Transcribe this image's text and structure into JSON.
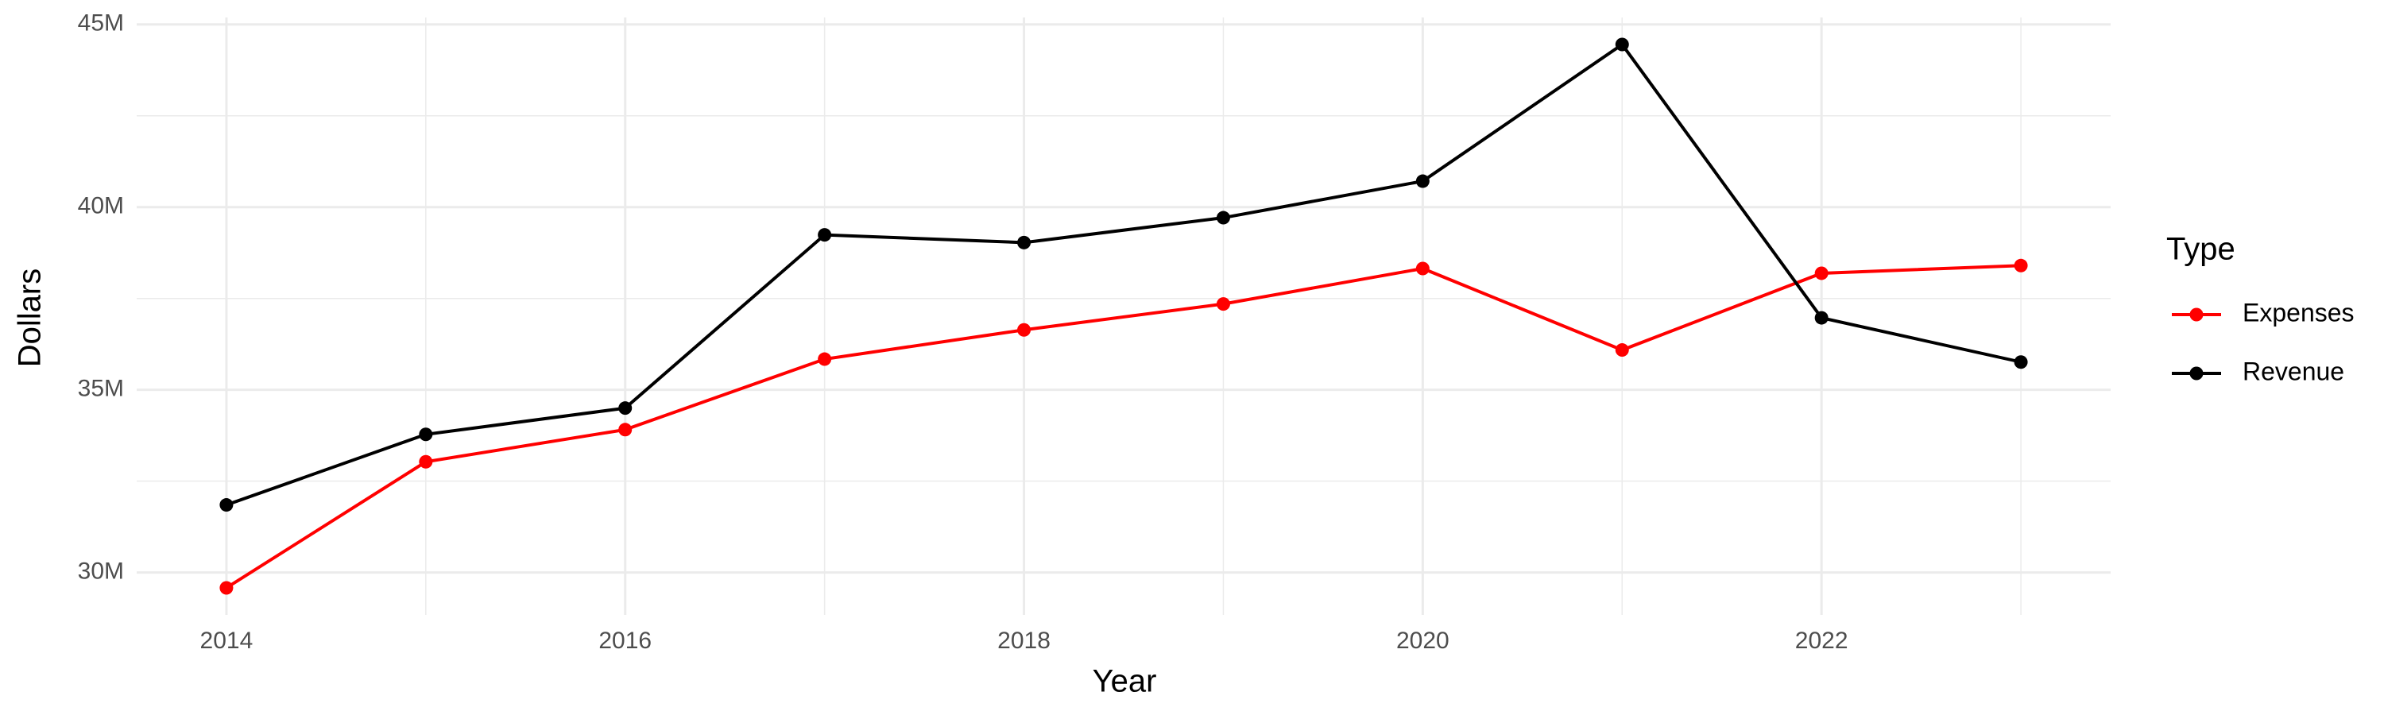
{
  "chart_data": {
    "type": "line",
    "x_label": "Year",
    "y_label": "Dollars",
    "x": [
      2014,
      2015,
      2016,
      2017,
      2018,
      2019,
      2020,
      2021,
      2022,
      2023
    ],
    "series": [
      {
        "name": "Expenses",
        "color": "#ff0000",
        "values": [
          29580000,
          33030000,
          33910000,
          35840000,
          36640000,
          37350000,
          38320000,
          36090000,
          38190000,
          38400000
        ]
      },
      {
        "name": "Revenue",
        "color": "#000000",
        "values": [
          31850000,
          33780000,
          34500000,
          39240000,
          39030000,
          39710000,
          40710000,
          44450000,
          36970000,
          35760000
        ]
      }
    ],
    "legend_title": "Type",
    "legend_position": "right",
    "xlim": [
      2013.55,
      2023.45
    ],
    "xticks": [
      2014,
      2016,
      2018,
      2020,
      2022
    ],
    "xminorticks": [
      2015,
      2017,
      2019,
      2021,
      2023
    ],
    "ylim": [
      28840000,
      45190000
    ],
    "yticks": [
      {
        "value": 30000000,
        "label": "30M"
      },
      {
        "value": 35000000,
        "label": "35M"
      },
      {
        "value": 40000000,
        "label": "40M"
      },
      {
        "value": 45000000,
        "label": "45M"
      }
    ],
    "yminorticks": [
      32500000,
      37500000,
      42500000
    ],
    "grid": true
  }
}
